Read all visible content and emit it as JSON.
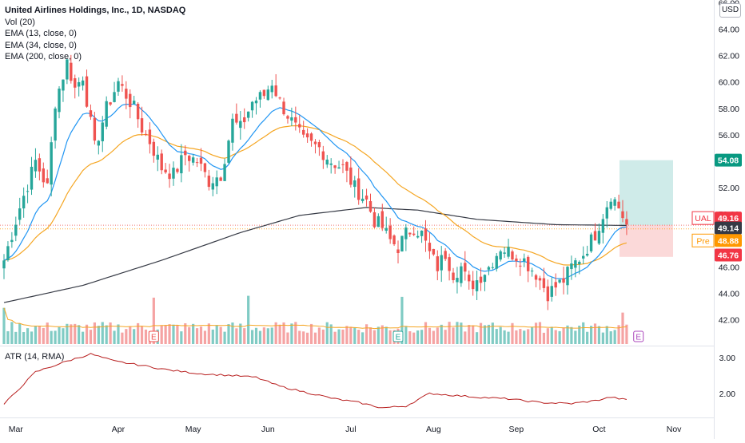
{
  "legend": {
    "title": "United Airlines Holdings, Inc., 1D, NASDAQ",
    "lines": [
      "Vol (20)",
      "EMA (13, close, 0)",
      "EMA (34, close, 0)",
      "EMA (200, close, 0)"
    ]
  },
  "atr_label": "ATR (14, RMA)",
  "currency_label": "USD",
  "earnings_marker": "E",
  "price_labels": {
    "target": {
      "text": "54.08",
      "color": "#089981"
    },
    "ticker": {
      "name": "UAL",
      "text": "49.16",
      "color": "#f23645"
    },
    "ema200": {
      "text": "49.14",
      "color": "#363a45"
    },
    "pre": {
      "name": "Pre",
      "text": "48.88",
      "color": "#ff9800"
    },
    "stop": {
      "text": "46.76",
      "color": "#f23645"
    }
  },
  "chart_data": {
    "type": "candlestick",
    "symbol": "UAL",
    "interval": "1D",
    "exchange": "NASDAQ",
    "price_axis": {
      "ticks": [
        42.0,
        44.0,
        46.0,
        48.0,
        50.0,
        52.0,
        54.0,
        56.0,
        58.0,
        60.0,
        62.0,
        64.0,
        66.0
      ],
      "ylim": [
        41.2,
        66.0
      ]
    },
    "atr_axis": {
      "ticks": [
        2.0,
        3.0
      ],
      "ylim": [
        1.4,
        3.2
      ]
    },
    "x_labels": [
      "Mar",
      "Apr",
      "May",
      "Jun",
      "Jul",
      "Aug",
      "Sep",
      "Oct",
      "Nov"
    ],
    "colors": {
      "up": "#26a69a",
      "down": "#ef5350",
      "ema13": "#2196f3",
      "ema34": "#f5a623",
      "ema200": "#363a45",
      "atr": "#b71c1c",
      "vol_up": "#80cbc4",
      "vol_down": "#f5a3a3",
      "vol_ma": "#f5a623"
    },
    "close_anchors": [
      [
        0,
        46.5
      ],
      [
        4,
        50.5
      ],
      [
        8,
        54.0
      ],
      [
        11,
        52.0
      ],
      [
        13,
        58.5
      ],
      [
        16,
        61.5
      ],
      [
        18,
        59.5
      ],
      [
        20,
        60.5
      ],
      [
        23,
        55.0
      ],
      [
        26,
        58.0
      ],
      [
        29,
        60.0
      ],
      [
        31,
        59.0
      ],
      [
        33,
        58.0
      ],
      [
        35,
        56.5
      ],
      [
        37,
        55.5
      ],
      [
        40,
        53.5
      ],
      [
        43,
        53.0
      ],
      [
        46,
        54.5
      ],
      [
        49,
        54.0
      ],
      [
        52,
        52.5
      ],
      [
        55,
        53.0
      ],
      [
        58,
        57.0
      ],
      [
        60,
        56.5
      ],
      [
        63,
        58.5
      ],
      [
        66,
        59.0
      ],
      [
        68,
        60.0
      ],
      [
        70,
        58.5
      ],
      [
        73,
        57.0
      ],
      [
        76,
        55.5
      ],
      [
        80,
        55.0
      ],
      [
        83,
        54.0
      ],
      [
        86,
        53.5
      ],
      [
        89,
        52.0
      ],
      [
        92,
        51.0
      ],
      [
        94,
        49.5
      ],
      [
        96,
        49.0
      ],
      [
        98,
        48.0
      ],
      [
        100,
        47.5
      ],
      [
        102,
        48.5
      ],
      [
        104,
        49.0
      ],
      [
        106,
        48.5
      ],
      [
        108,
        47.0
      ],
      [
        110,
        46.0
      ],
      [
        112,
        47.0
      ],
      [
        114,
        45.5
      ],
      [
        116,
        46.0
      ],
      [
        118,
        44.5
      ],
      [
        120,
        45.0
      ],
      [
        123,
        46.0
      ],
      [
        126,
        47.5
      ],
      [
        129,
        47.0
      ],
      [
        132,
        46.5
      ],
      [
        135,
        45.5
      ],
      [
        138,
        44.0
      ],
      [
        140,
        44.5
      ],
      [
        142,
        45.0
      ],
      [
        144,
        46.0
      ],
      [
        147,
        47.0
      ],
      [
        150,
        48.5
      ],
      [
        152,
        50.0
      ],
      [
        154,
        51.5
      ],
      [
        156,
        50.5
      ],
      [
        158,
        49.2
      ]
    ],
    "ema200_anchors": [
      [
        0,
        43.3
      ],
      [
        20,
        44.6
      ],
      [
        40,
        46.5
      ],
      [
        60,
        48.6
      ],
      [
        75,
        49.9
      ],
      [
        92,
        50.5
      ],
      [
        105,
        50.3
      ],
      [
        120,
        49.6
      ],
      [
        140,
        49.2
      ],
      [
        158,
        49.14
      ]
    ],
    "atr_anchors": [
      [
        0,
        1.7
      ],
      [
        8,
        2.6
      ],
      [
        16,
        2.9
      ],
      [
        22,
        3.1
      ],
      [
        28,
        2.9
      ],
      [
        34,
        2.8
      ],
      [
        42,
        2.65
      ],
      [
        50,
        2.55
      ],
      [
        58,
        2.5
      ],
      [
        64,
        2.45
      ],
      [
        70,
        2.2
      ],
      [
        78,
        2.0
      ],
      [
        84,
        1.85
      ],
      [
        90,
        1.75
      ],
      [
        96,
        1.6
      ],
      [
        102,
        1.65
      ],
      [
        108,
        2.0
      ],
      [
        114,
        1.95
      ],
      [
        120,
        1.9
      ],
      [
        128,
        1.85
      ],
      [
        136,
        1.75
      ],
      [
        144,
        1.72
      ],
      [
        150,
        1.8
      ],
      [
        154,
        1.9
      ],
      [
        158,
        1.82
      ]
    ],
    "volume_spikes": [
      [
        0,
        1.9
      ],
      [
        38,
        2.6
      ],
      [
        62,
        1.9
      ],
      [
        101,
        2.4
      ],
      [
        157,
        1.8
      ]
    ],
    "earnings_bars": [
      38,
      100,
      161
    ],
    "trade_box": {
      "entry": 49.16,
      "target": 54.08,
      "stop": 46.76
    }
  }
}
